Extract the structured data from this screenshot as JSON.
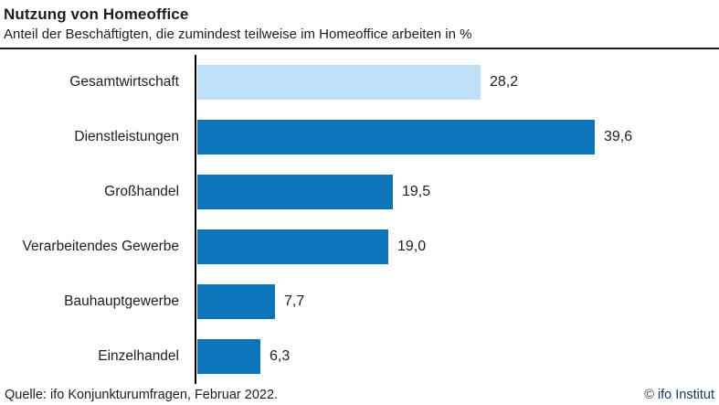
{
  "header": {
    "title": "Nutzung von Homeoffice",
    "subtitle": "Anteil der Beschäftigten, die zumindest teilweise im Homeoffice arbeiten in %"
  },
  "footer": {
    "source": "Quelle: ifo Konjunkturumfragen, Februar 2022.",
    "copyright": "© ifo Institut"
  },
  "colors": {
    "bar_default": "#0c75ba",
    "bar_highlight": "#bee1f9",
    "text": "#1d1d1b",
    "copyright_text": "#17365d",
    "axis": "#000000",
    "rule": "#1c1c24"
  },
  "chart_data": {
    "type": "bar",
    "orientation": "horizontal",
    "title": "Nutzung von Homeoffice",
    "subtitle": "Anteil der Beschäftigten, die zumindest teilweise im Homeoffice arbeiten in %",
    "xlabel": "",
    "ylabel": "",
    "categories": [
      "Gesamtwirtschaft",
      "Dienstleistungen",
      "Großhandel",
      "Verarbeitendes Gewerbe",
      "Bauhauptgewerbe",
      "Einzelhandel"
    ],
    "values": [
      28.2,
      39.6,
      19.5,
      19.0,
      7.7,
      6.3
    ],
    "value_labels": [
      "28,2",
      "39,6",
      "19,5",
      "19,0",
      "7,7",
      "6,3"
    ],
    "highlight_index": 0,
    "xlim": [
      0,
      52
    ],
    "grid": false,
    "legend": false,
    "data_labels": "end-of-bar"
  }
}
